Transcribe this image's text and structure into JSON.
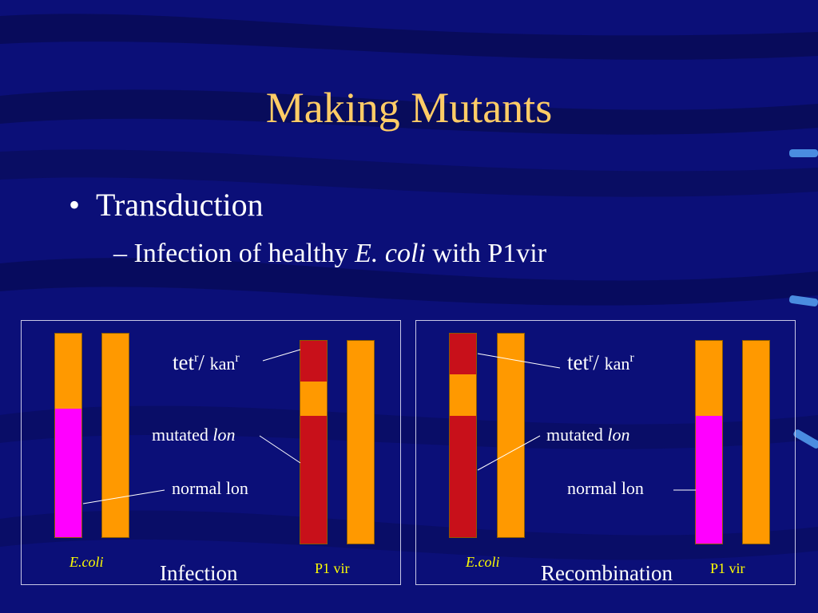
{
  "title": "Making Mutants",
  "bullet_main": "Transduction",
  "bullet_sub": {
    "dash": "– ",
    "before": "Infection of healthy ",
    "italic": "E. coli",
    "after": " with P1vir"
  },
  "colors": {
    "background": "#0b0f78",
    "title": "#ffcc66",
    "orange": "#ff9900",
    "magenta": "#ff00ff",
    "red": "#c8101a",
    "label_yellow": "#ffff00"
  },
  "panel_left": {
    "caption": "Infection",
    "label_tet": "tet",
    "label_r1": "r",
    "label_slash": "/ ",
    "label_kan": "kan",
    "label_r2": "r",
    "label_mutated": "mutated ",
    "label_lon_italic": "lon",
    "label_normal": "normal lon",
    "label_ecoli": "E.coli",
    "label_p1": "P1 vir"
  },
  "panel_right": {
    "caption": "Recombination",
    "label_tet": "tet",
    "label_r1": "r",
    "label_slash": "/ ",
    "label_kan": "kan",
    "label_r2": "r",
    "label_mutated": "mutated ",
    "label_lon_italic": "lon",
    "label_normal": "normal lon",
    "label_ecoli": "E.coli",
    "label_p1": "P1 vir"
  }
}
